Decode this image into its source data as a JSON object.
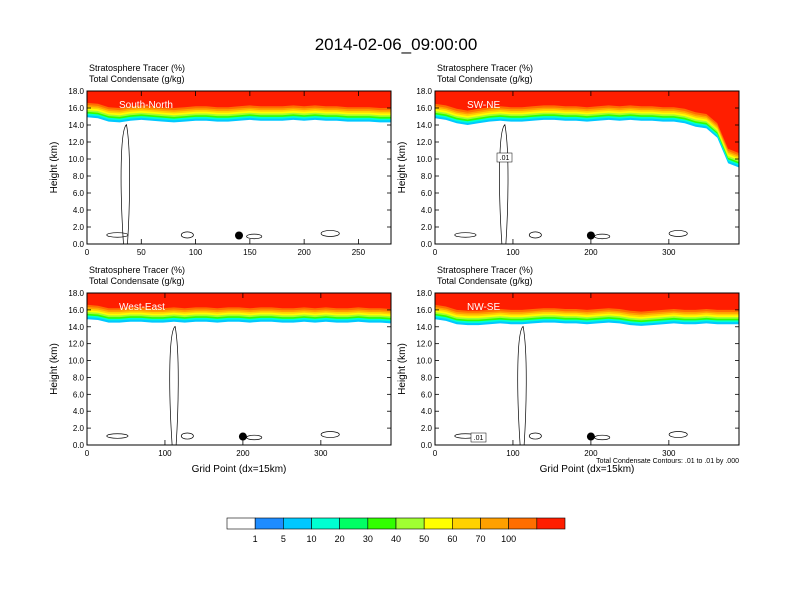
{
  "page": {
    "title": "2014-02-06_09:00:00"
  },
  "chart_data": [
    {
      "type": "heatmap",
      "panel_label": "South-North",
      "title_lines": [
        "Stratosphere Tracer   (%)",
        "Total Condensate   (g/kg)"
      ],
      "ylabel": "Height (km)",
      "xlabel": "",
      "xlim": [
        0,
        280
      ],
      "ylim": [
        0,
        18
      ],
      "xticks": [
        0,
        50,
        100,
        150,
        200,
        250
      ],
      "yticks": [
        "0.0",
        "2.0",
        "4.0",
        "6.0",
        "8.0",
        "10.0",
        "12.0",
        "14.0",
        "16.0",
        "18.0"
      ],
      "tracer_boundary_km": [
        15.9,
        15.8,
        15.4,
        15.3,
        15.5,
        15.6,
        15.5,
        15.4,
        15.3,
        15.4,
        15.5,
        15.5,
        15.4,
        15.4,
        15.5,
        15.6,
        15.5,
        15.5,
        15.5,
        15.6,
        15.5,
        15.6,
        15.5,
        15.5,
        15.4,
        15.4,
        15.4,
        15.3,
        15.3
      ],
      "marker": {
        "x": 140,
        "y": 1.0
      },
      "note": ""
    },
    {
      "type": "heatmap",
      "panel_label": "SW-NE",
      "title_lines": [
        "Stratosphere Tracer   (%)",
        "Total Condensate   (g/kg)"
      ],
      "ylabel": "Height (km)",
      "xlabel": "",
      "xlim": [
        0,
        390
      ],
      "ylim": [
        0,
        18
      ],
      "xticks": [
        0,
        100,
        200,
        300
      ],
      "yticks": [
        "0.0",
        "2.0",
        "4.0",
        "6.0",
        "8.0",
        "10.0",
        "12.0",
        "14.0",
        "16.0",
        "18.0"
      ],
      "tracer_boundary_km": [
        15.8,
        15.6,
        15.2,
        15.0,
        15.2,
        15.4,
        15.5,
        15.4,
        15.4,
        15.5,
        15.6,
        15.6,
        15.5,
        15.5,
        15.4,
        15.5,
        15.6,
        15.5,
        15.6,
        15.5,
        15.5,
        15.4,
        15.4,
        15.2,
        14.8,
        14.6,
        13.5,
        10.5,
        10.0
      ],
      "contour_label": ".01",
      "marker": {
        "x": 200,
        "y": 1.0
      },
      "note": ""
    },
    {
      "type": "heatmap",
      "panel_label": "West-East",
      "title_lines": [
        "Stratosphere Tracer   (%)",
        "Total Condensate   (g/kg)"
      ],
      "ylabel": "Height (km)",
      "xlabel": "Grid Point (dx=15km)",
      "xlim": [
        0,
        390
      ],
      "ylim": [
        0,
        18
      ],
      "xticks": [
        0,
        100,
        200,
        300
      ],
      "yticks": [
        "0.0",
        "2.0",
        "4.0",
        "6.0",
        "8.0",
        "10.0",
        "12.0",
        "14.0",
        "16.0",
        "18.0"
      ],
      "tracer_boundary_km": [
        15.9,
        15.8,
        15.5,
        15.5,
        15.6,
        15.6,
        15.5,
        15.5,
        15.6,
        15.5,
        15.6,
        15.6,
        15.5,
        15.6,
        15.6,
        15.5,
        15.6,
        15.6,
        15.5,
        15.5,
        15.6,
        15.5,
        15.6,
        15.5,
        15.5,
        15.6,
        15.5,
        15.5,
        15.4
      ],
      "marker": {
        "x": 200,
        "y": 1.0
      },
      "note": ""
    },
    {
      "type": "heatmap",
      "panel_label": "NW-SE",
      "title_lines": [
        "Stratosphere Tracer   (%)",
        "Total Condensate   (g/kg)"
      ],
      "ylabel": "Height (km)",
      "xlabel": "Grid Point (dx=15km)",
      "xlim": [
        0,
        390
      ],
      "ylim": [
        0,
        18
      ],
      "xticks": [
        0,
        100,
        200,
        300
      ],
      "yticks": [
        "0.0",
        "2.0",
        "4.0",
        "6.0",
        "8.0",
        "10.0",
        "12.0",
        "14.0",
        "16.0",
        "18.0"
      ],
      "tracer_boundary_km": [
        15.9,
        15.7,
        15.3,
        15.2,
        15.2,
        15.3,
        15.4,
        15.3,
        15.3,
        15.4,
        15.5,
        15.5,
        15.4,
        15.4,
        15.3,
        15.4,
        15.5,
        15.4,
        15.2,
        15.1,
        15.2,
        15.3,
        15.4,
        15.3,
        15.3,
        15.4,
        15.3,
        15.3,
        15.3
      ],
      "contour_label": ".01",
      "marker": {
        "x": 200,
        "y": 1.0
      },
      "note": "Total Condensate Contours: .01 to .01 by .000"
    }
  ],
  "colorbar": {
    "colors": [
      "#ffffff",
      "#1e8cff",
      "#00c8ff",
      "#00ffd2",
      "#00ff64",
      "#32ff00",
      "#a0ff32",
      "#ffff00",
      "#ffd200",
      "#ffa000",
      "#ff6e00",
      "#ff1e00"
    ],
    "labels": [
      "1",
      "5",
      "10",
      "20",
      "30",
      "40",
      "50",
      "60",
      "70",
      "100"
    ]
  }
}
